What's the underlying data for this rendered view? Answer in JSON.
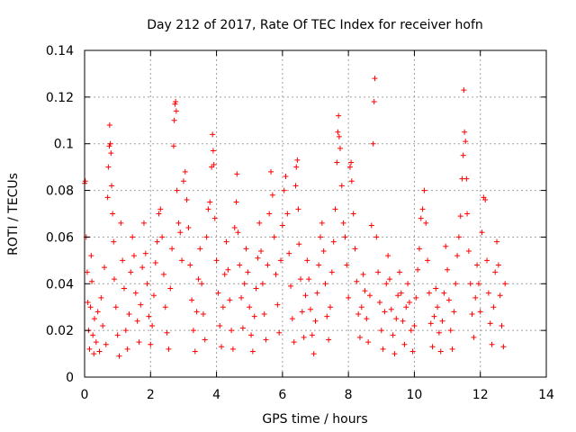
{
  "chart_data": {
    "type": "scatter",
    "title": "Day 212 of 2017, Rate Of TEC Index for receiver hofn",
    "xlabel": "GPS time / hours",
    "ylabel": "ROTI / TECUs",
    "xlim": [
      0,
      14
    ],
    "ylim": [
      0,
      0.14
    ],
    "xticks": [
      0,
      2,
      4,
      6,
      8,
      10,
      12,
      14
    ],
    "yticks": [
      0,
      0.02,
      0.04,
      0.06,
      0.08,
      0.1,
      0.12,
      0.14
    ],
    "xtick_labels": [
      "0",
      "2",
      "4",
      "6",
      "8",
      "10",
      "12",
      "14"
    ],
    "ytick_labels": [
      "0",
      "0.02",
      "0.04",
      "0.06",
      "0.08",
      "0.1",
      "0.12",
      "0.14"
    ],
    "grid": true,
    "marker": "+",
    "color": "#ff0000",
    "series": [
      {
        "name": "ROTI",
        "points": [
          [
            0.0,
            0.083
          ],
          [
            0.02,
            0.084
          ],
          [
            0.05,
            0.06
          ],
          [
            0.08,
            0.045
          ],
          [
            0.1,
            0.032
          ],
          [
            0.12,
            0.02
          ],
          [
            0.15,
            0.012
          ],
          [
            0.18,
            0.03
          ],
          [
            0.2,
            0.052
          ],
          [
            0.22,
            0.041
          ],
          [
            0.25,
            0.018
          ],
          [
            0.28,
            0.01
          ],
          [
            0.3,
            0.025
          ],
          [
            0.35,
            0.015
          ],
          [
            0.4,
            0.028
          ],
          [
            0.45,
            0.011
          ],
          [
            0.5,
            0.034
          ],
          [
            0.55,
            0.022
          ],
          [
            0.6,
            0.047
          ],
          [
            0.65,
            0.014
          ],
          [
            0.7,
            0.077
          ],
          [
            0.72,
            0.09
          ],
          [
            0.75,
            0.099
          ],
          [
            0.76,
            0.108
          ],
          [
            0.78,
            0.1
          ],
          [
            0.8,
            0.096
          ],
          [
            0.82,
            0.082
          ],
          [
            0.85,
            0.07
          ],
          [
            0.88,
            0.058
          ],
          [
            0.9,
            0.042
          ],
          [
            0.95,
            0.03
          ],
          [
            1.0,
            0.018
          ],
          [
            1.05,
            0.009
          ],
          [
            1.1,
            0.066
          ],
          [
            1.15,
            0.05
          ],
          [
            1.2,
            0.038
          ],
          [
            1.25,
            0.02
          ],
          [
            1.3,
            0.012
          ],
          [
            1.35,
            0.027
          ],
          [
            1.4,
            0.045
          ],
          [
            1.45,
            0.06
          ],
          [
            1.5,
            0.052
          ],
          [
            1.55,
            0.036
          ],
          [
            1.6,
            0.024
          ],
          [
            1.65,
            0.015
          ],
          [
            1.7,
            0.031
          ],
          [
            1.75,
            0.047
          ],
          [
            1.8,
            0.066
          ],
          [
            1.85,
            0.053
          ],
          [
            1.9,
            0.04
          ],
          [
            1.95,
            0.026
          ],
          [
            2.0,
            0.014
          ],
          [
            2.05,
            0.022
          ],
          [
            2.1,
            0.035
          ],
          [
            2.15,
            0.049
          ],
          [
            2.2,
            0.058
          ],
          [
            2.25,
            0.07
          ],
          [
            2.3,
            0.072
          ],
          [
            2.35,
            0.06
          ],
          [
            2.4,
            0.044
          ],
          [
            2.45,
            0.03
          ],
          [
            2.5,
            0.019
          ],
          [
            2.55,
            0.012
          ],
          [
            2.6,
            0.038
          ],
          [
            2.65,
            0.055
          ],
          [
            2.7,
            0.099
          ],
          [
            2.72,
            0.11
          ],
          [
            2.74,
            0.117
          ],
          [
            2.76,
            0.118
          ],
          [
            2.78,
            0.114
          ],
          [
            2.8,
            0.08
          ],
          [
            2.85,
            0.066
          ],
          [
            2.9,
            0.062
          ],
          [
            2.95,
            0.05
          ],
          [
            3.0,
            0.084
          ],
          [
            3.05,
            0.088
          ],
          [
            3.1,
            0.076
          ],
          [
            3.15,
            0.064
          ],
          [
            3.2,
            0.048
          ],
          [
            3.25,
            0.033
          ],
          [
            3.3,
            0.02
          ],
          [
            3.35,
            0.011
          ],
          [
            3.4,
            0.028
          ],
          [
            3.45,
            0.042
          ],
          [
            3.5,
            0.055
          ],
          [
            3.55,
            0.04
          ],
          [
            3.6,
            0.027
          ],
          [
            3.65,
            0.016
          ],
          [
            3.7,
            0.06
          ],
          [
            3.75,
            0.072
          ],
          [
            3.8,
            0.075
          ],
          [
            3.85,
            0.09
          ],
          [
            3.88,
            0.104
          ],
          [
            3.9,
            0.097
          ],
          [
            3.92,
            0.091
          ],
          [
            3.95,
            0.068
          ],
          [
            4.0,
            0.05
          ],
          [
            4.05,
            0.036
          ],
          [
            4.1,
            0.022
          ],
          [
            4.15,
            0.013
          ],
          [
            4.2,
            0.03
          ],
          [
            4.25,
            0.044
          ],
          [
            4.3,
            0.058
          ],
          [
            4.35,
            0.046
          ],
          [
            4.4,
            0.033
          ],
          [
            4.45,
            0.02
          ],
          [
            4.5,
            0.012
          ],
          [
            4.55,
            0.064
          ],
          [
            4.6,
            0.075
          ],
          [
            4.62,
            0.087
          ],
          [
            4.65,
            0.062
          ],
          [
            4.7,
            0.048
          ],
          [
            4.75,
            0.034
          ],
          [
            4.8,
            0.021
          ],
          [
            4.85,
            0.04
          ],
          [
            4.9,
            0.055
          ],
          [
            4.95,
            0.045
          ],
          [
            5.0,
            0.03
          ],
          [
            5.05,
            0.018
          ],
          [
            5.1,
            0.011
          ],
          [
            5.15,
            0.026
          ],
          [
            5.2,
            0.038
          ],
          [
            5.25,
            0.051
          ],
          [
            5.3,
            0.066
          ],
          [
            5.35,
            0.054
          ],
          [
            5.4,
            0.04
          ],
          [
            5.45,
            0.027
          ],
          [
            5.5,
            0.016
          ],
          [
            5.55,
            0.048
          ],
          [
            5.6,
            0.07
          ],
          [
            5.65,
            0.088
          ],
          [
            5.7,
            0.078
          ],
          [
            5.75,
            0.06
          ],
          [
            5.8,
            0.044
          ],
          [
            5.85,
            0.031
          ],
          [
            5.9,
            0.019
          ],
          [
            5.95,
            0.05
          ],
          [
            6.0,
            0.065
          ],
          [
            6.05,
            0.08
          ],
          [
            6.1,
            0.086
          ],
          [
            6.15,
            0.07
          ],
          [
            6.2,
            0.053
          ],
          [
            6.25,
            0.039
          ],
          [
            6.3,
            0.025
          ],
          [
            6.35,
            0.015
          ],
          [
            6.4,
            0.082
          ],
          [
            6.42,
            0.09
          ],
          [
            6.45,
            0.093
          ],
          [
            6.48,
            0.072
          ],
          [
            6.5,
            0.057
          ],
          [
            6.55,
            0.042
          ],
          [
            6.6,
            0.028
          ],
          [
            6.65,
            0.017
          ],
          [
            6.7,
            0.035
          ],
          [
            6.75,
            0.05
          ],
          [
            6.8,
            0.042
          ],
          [
            6.85,
            0.029
          ],
          [
            6.9,
            0.018
          ],
          [
            6.95,
            0.01
          ],
          [
            7.0,
            0.024
          ],
          [
            7.05,
            0.036
          ],
          [
            7.1,
            0.048
          ],
          [
            7.15,
            0.06
          ],
          [
            7.2,
            0.066
          ],
          [
            7.25,
            0.054
          ],
          [
            7.3,
            0.04
          ],
          [
            7.35,
            0.026
          ],
          [
            7.4,
            0.016
          ],
          [
            7.45,
            0.03
          ],
          [
            7.5,
            0.045
          ],
          [
            7.55,
            0.058
          ],
          [
            7.6,
            0.072
          ],
          [
            7.65,
            0.092
          ],
          [
            7.68,
            0.105
          ],
          [
            7.7,
            0.112
          ],
          [
            7.72,
            0.103
          ],
          [
            7.75,
            0.098
          ],
          [
            7.8,
            0.082
          ],
          [
            7.85,
            0.066
          ],
          [
            7.9,
            0.06
          ],
          [
            7.95,
            0.048
          ],
          [
            8.0,
            0.034
          ],
          [
            8.05,
            0.09
          ],
          [
            8.08,
            0.092
          ],
          [
            8.1,
            0.084
          ],
          [
            8.15,
            0.07
          ],
          [
            8.2,
            0.055
          ],
          [
            8.25,
            0.041
          ],
          [
            8.3,
            0.027
          ],
          [
            8.35,
            0.017
          ],
          [
            8.4,
            0.03
          ],
          [
            8.45,
            0.044
          ],
          [
            8.5,
            0.037
          ],
          [
            8.55,
            0.025
          ],
          [
            8.6,
            0.015
          ],
          [
            8.65,
            0.035
          ],
          [
            8.7,
            0.065
          ],
          [
            8.75,
            0.1
          ],
          [
            8.78,
            0.118
          ],
          [
            8.8,
            0.128
          ],
          [
            8.85,
            0.06
          ],
          [
            8.9,
            0.045
          ],
          [
            8.95,
            0.032
          ],
          [
            9.0,
            0.02
          ],
          [
            9.05,
            0.012
          ],
          [
            9.1,
            0.028
          ],
          [
            9.15,
            0.04
          ],
          [
            9.2,
            0.052
          ],
          [
            9.25,
            0.042
          ],
          [
            9.3,
            0.029
          ],
          [
            9.35,
            0.018
          ],
          [
            9.4,
            0.01
          ],
          [
            9.45,
            0.025
          ],
          [
            9.5,
            0.035
          ],
          [
            9.55,
            0.045
          ],
          [
            9.6,
            0.036
          ],
          [
            9.65,
            0.024
          ],
          [
            9.7,
            0.014
          ],
          [
            9.75,
            0.03
          ],
          [
            9.8,
            0.04
          ],
          [
            9.85,
            0.032
          ],
          [
            9.9,
            0.02
          ],
          [
            9.95,
            0.011
          ],
          [
            10.0,
            0.022
          ],
          [
            10.05,
            0.034
          ],
          [
            10.1,
            0.046
          ],
          [
            10.15,
            0.055
          ],
          [
            10.2,
            0.068
          ],
          [
            10.25,
            0.072
          ],
          [
            10.3,
            0.08
          ],
          [
            10.35,
            0.066
          ],
          [
            10.4,
            0.05
          ],
          [
            10.45,
            0.036
          ],
          [
            10.5,
            0.023
          ],
          [
            10.55,
            0.013
          ],
          [
            10.6,
            0.026
          ],
          [
            10.65,
            0.038
          ],
          [
            10.7,
            0.03
          ],
          [
            10.75,
            0.019
          ],
          [
            10.8,
            0.011
          ],
          [
            10.85,
            0.024
          ],
          [
            10.9,
            0.036
          ],
          [
            10.95,
            0.056
          ],
          [
            11.0,
            0.046
          ],
          [
            11.05,
            0.033
          ],
          [
            11.1,
            0.02
          ],
          [
            11.15,
            0.012
          ],
          [
            11.2,
            0.028
          ],
          [
            11.25,
            0.04
          ],
          [
            11.3,
            0.052
          ],
          [
            11.35,
            0.06
          ],
          [
            11.4,
            0.069
          ],
          [
            11.45,
            0.085
          ],
          [
            11.48,
            0.095
          ],
          [
            11.5,
            0.123
          ],
          [
            11.52,
            0.105
          ],
          [
            11.55,
            0.101
          ],
          [
            11.58,
            0.085
          ],
          [
            11.6,
            0.07
          ],
          [
            11.65,
            0.054
          ],
          [
            11.7,
            0.04
          ],
          [
            11.75,
            0.027
          ],
          [
            11.8,
            0.017
          ],
          [
            11.85,
            0.034
          ],
          [
            11.9,
            0.048
          ],
          [
            11.95,
            0.04
          ],
          [
            12.0,
            0.028
          ],
          [
            12.05,
            0.062
          ],
          [
            12.1,
            0.077
          ],
          [
            12.15,
            0.076
          ],
          [
            12.2,
            0.05
          ],
          [
            12.25,
            0.036
          ],
          [
            12.3,
            0.023
          ],
          [
            12.35,
            0.014
          ],
          [
            12.4,
            0.03
          ],
          [
            12.45,
            0.045
          ],
          [
            12.5,
            0.058
          ],
          [
            12.55,
            0.048
          ],
          [
            12.6,
            0.035
          ],
          [
            12.65,
            0.022
          ],
          [
            12.7,
            0.013
          ],
          [
            12.75,
            0.04
          ]
        ]
      }
    ]
  }
}
